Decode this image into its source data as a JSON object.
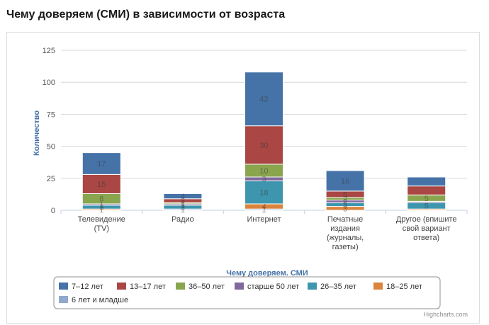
{
  "page": {
    "title": "Чему доверяем (СМИ) в зависимости от возраста"
  },
  "credits": "Highcharts.com",
  "chart_data": {
    "type": "bar",
    "stacked": true,
    "xlabel": "Чему доверяем. СМИ",
    "ylabel": "Количество",
    "ylim": [
      0,
      125
    ],
    "yticks": [
      0,
      25,
      50,
      75,
      100,
      125
    ],
    "grid": true,
    "legend_position": "bottom",
    "categories": [
      [
        "Телевидение",
        "(TV)"
      ],
      [
        "Радио"
      ],
      [
        "Интернет"
      ],
      [
        "Печатные",
        "издания",
        "(журналы,",
        "газеты)"
      ],
      [
        "Другое (впишите",
        "свой вариант",
        "ответа)"
      ]
    ],
    "series": [
      {
        "name": "7–12 лет",
        "color": "#4572a7",
        "values": [
          17,
          4,
          42,
          16,
          7
        ]
      },
      {
        "name": "13–17 лет",
        "color": "#aa4643",
        "values": [
          15,
          3,
          30,
          5,
          7
        ]
      },
      {
        "name": "36–50 лет",
        "color": "#89a54e",
        "values": [
          8,
          1,
          10,
          2,
          5
        ]
      },
      {
        "name": "старше 50 лет",
        "color": "#80699b",
        "values": [
          1,
          1,
          3,
          2,
          1
        ]
      },
      {
        "name": "26–35 лет",
        "color": "#3d96ae",
        "values": [
          3,
          3,
          18,
          3,
          5
        ]
      },
      {
        "name": "18–25 лет",
        "color": "#db843d",
        "values": [
          1,
          0,
          4,
          3,
          1
        ]
      },
      {
        "name": "6 лет и младше",
        "color": "#92a8cd",
        "values": [
          0,
          1,
          1,
          0,
          0
        ]
      }
    ],
    "segment_labels": [
      [
        "17",
        "4",
        "42",
        "16",
        ""
      ],
      [
        "15",
        "3",
        "30",
        "5",
        ""
      ],
      [
        "8",
        "1",
        "10",
        "2",
        "5"
      ],
      [
        "1",
        "1",
        "3",
        "2",
        ""
      ],
      [
        "3",
        "3",
        "18",
        "3",
        "5"
      ],
      [
        "1",
        "",
        "4",
        "3",
        ""
      ],
      [
        "",
        "1",
        "1",
        "",
        ""
      ]
    ]
  }
}
